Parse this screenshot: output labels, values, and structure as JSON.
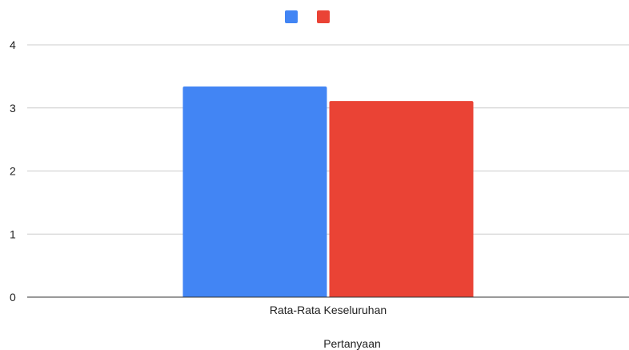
{
  "chart_data": {
    "type": "bar",
    "categories": [
      "Rata-Rata Keseluruhan"
    ],
    "series": [
      {
        "color": "#4285F4",
        "values": [
          3.34
        ]
      },
      {
        "color": "#EA4335",
        "values": [
          3.11
        ]
      }
    ],
    "xlabel": "Pertanyaan",
    "ylabel": "",
    "ylim": [
      0,
      4
    ],
    "yticks": [
      0,
      1,
      2,
      3,
      4
    ],
    "grid": true,
    "legend": "top-center",
    "gridline_color": "#cccccc",
    "axis_color": "#333333"
  }
}
